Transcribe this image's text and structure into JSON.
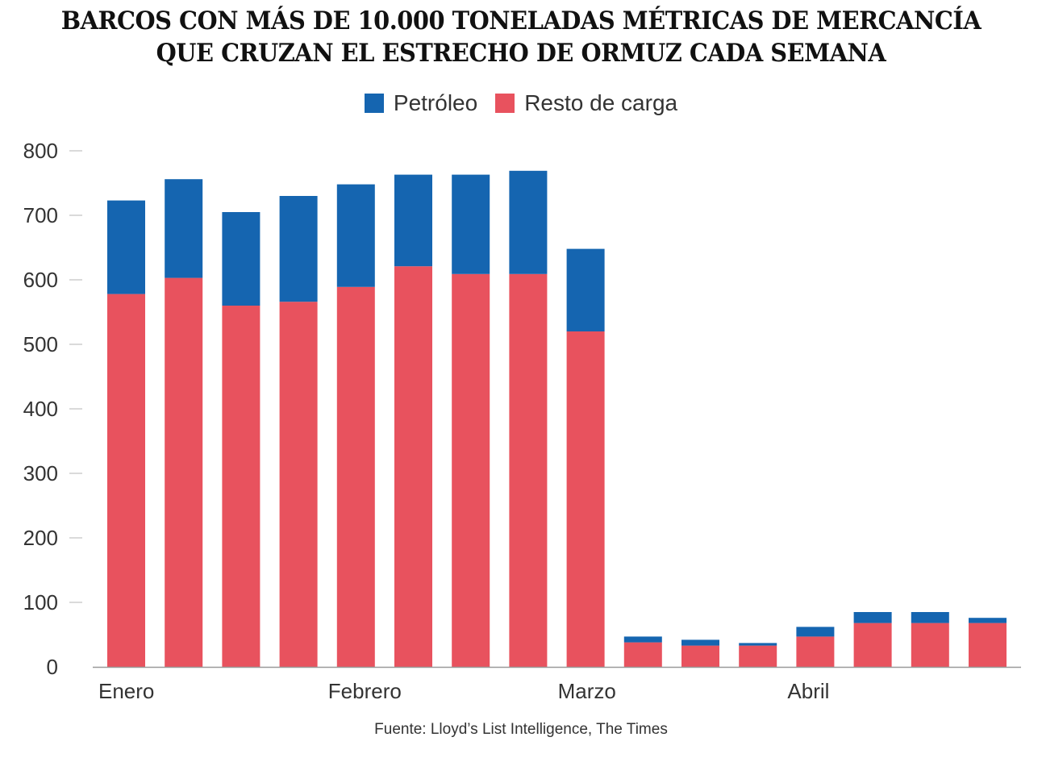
{
  "title_lines": [
    "BARCOS CON MÁS DE 10.000 TONELADAS MÉTRICAS DE MERCANCÍA",
    "QUE CRUZAN EL ESTRECHO DE ORMUZ CADA SEMANA"
  ],
  "legend": [
    {
      "label": "Petróleo",
      "color": "#1565b0"
    },
    {
      "label": "Resto de carga",
      "color": "#e8525e"
    }
  ],
  "source": "Fuente: Lloyd’s List Intelligence, The Times",
  "chart_data": {
    "type": "bar",
    "stacked": true,
    "title": "BARCOS CON MÁS DE 10.000 TONELADAS MÉTRICAS DE MERCANCÍA QUE CRUZAN EL ESTRECHO DE ORMUZ CADA SEMANA",
    "x_tick_labels": [
      {
        "index": 0,
        "label": "Enero"
      },
      {
        "index": 4,
        "label": "Febrero"
      },
      {
        "index": 8,
        "label": "Marzo"
      },
      {
        "index": 12,
        "label": "Abril"
      }
    ],
    "ylim": [
      0,
      800
    ],
    "yticks": [
      0,
      100,
      200,
      300,
      400,
      500,
      600,
      700,
      800
    ],
    "grid": false,
    "legend_position": "top-center",
    "series": [
      {
        "name": "Resto de carga",
        "color": "#e8525e",
        "values": [
          578,
          603,
          560,
          566,
          589,
          621,
          609,
          609,
          520,
          38,
          33,
          33,
          47,
          68,
          68,
          68
        ]
      },
      {
        "name": "Petróleo",
        "color": "#1565b0",
        "values": [
          145,
          153,
          145,
          164,
          159,
          142,
          154,
          160,
          128,
          9,
          9,
          4,
          15,
          17,
          17,
          8
        ]
      }
    ]
  }
}
